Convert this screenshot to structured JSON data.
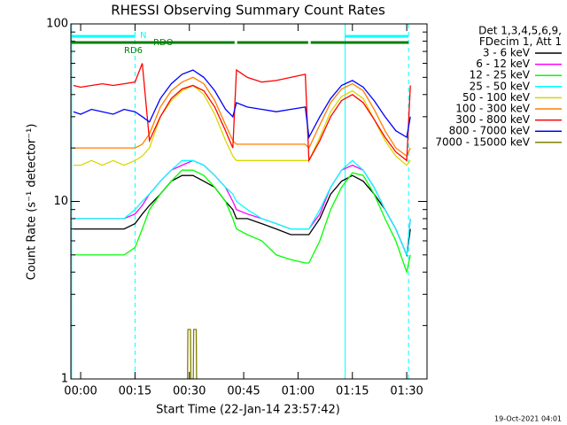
{
  "chart_data": {
    "type": "line",
    "title": "RHESSI Observing Summary Count Rates",
    "x_label": "Start Time (22-Jan-14 23:57:42)",
    "y_label": "Count Rate (s⁻¹ detector⁻¹)",
    "legend_header": [
      "Det 1,3,4,5,6,9,",
      "FDecim 1, Att 1"
    ],
    "footer": "19-Oct-2021 04:01",
    "log_y": true,
    "xlim": [
      -2.7,
      95.6
    ],
    "xticks": [
      {
        "value": 0,
        "label": "00:00"
      },
      {
        "value": 15,
        "label": "00:15"
      },
      {
        "value": 30,
        "label": "00:30"
      },
      {
        "value": 45,
        "label": "00:45"
      },
      {
        "value": 60,
        "label": "01:00"
      },
      {
        "value": 75,
        "label": "01:15"
      },
      {
        "value": 90,
        "label": "01:30"
      }
    ],
    "ylim": [
      1,
      100
    ],
    "yticks": [
      1,
      10,
      100
    ],
    "yminorticks": [
      2,
      3,
      4,
      5,
      6,
      7,
      8,
      9,
      20,
      30,
      40,
      50,
      60,
      70,
      80,
      90
    ],
    "x": [
      -2,
      0,
      3,
      6,
      9,
      12,
      15,
      17,
      19,
      22,
      25,
      28,
      31,
      34,
      37,
      40,
      42,
      43,
      46,
      50,
      54,
      58,
      62,
      63,
      66,
      69,
      72,
      75,
      78,
      81,
      84,
      87,
      90,
      91
    ],
    "series": [
      {
        "name": "3 - 6 keV",
        "color": "#000000",
        "values": [
          7,
          7,
          7,
          7,
          7,
          7,
          7.5,
          8.5,
          9.5,
          11,
          13,
          14,
          14,
          13,
          12,
          10,
          9,
          8,
          8,
          7.5,
          7,
          6.5,
          6.5,
          6.5,
          8,
          11,
          13,
          14,
          13,
          11,
          9,
          7,
          5,
          7
        ]
      },
      {
        "name": "6 - 12 keV",
        "color": "#ff00ff",
        "values": [
          8,
          8,
          8,
          8,
          8,
          8,
          8.5,
          9.5,
          11,
          13,
          15,
          16,
          17,
          16,
          14,
          12,
          10,
          9,
          8.5,
          8,
          7.5,
          7,
          7,
          7,
          8.5,
          12,
          15,
          16,
          15,
          12,
          9,
          7,
          5,
          8
        ]
      },
      {
        "name": "12 - 25 keV",
        "color": "#00ff00",
        "values": [
          5,
          5,
          5,
          5,
          5,
          5,
          5.5,
          7,
          9,
          11,
          13,
          15,
          15,
          14,
          12,
          10,
          8,
          7,
          6.5,
          6,
          5,
          4.7,
          4.5,
          4.5,
          6,
          9,
          12,
          14.5,
          14,
          11,
          8,
          6,
          4,
          5
        ]
      },
      {
        "name": "25 - 50 keV",
        "color": "#00ffff",
        "values": [
          8,
          8,
          8,
          8,
          8,
          8,
          9,
          10,
          11,
          13,
          15,
          17,
          17,
          16,
          14,
          12,
          11,
          10,
          9,
          8,
          7.5,
          7,
          7,
          7,
          9,
          12,
          15,
          17,
          15,
          12,
          9,
          7,
          5,
          8
        ]
      },
      {
        "name": "50 - 100 keV",
        "color": "#d8d800",
        "values": [
          16,
          16,
          17,
          16,
          17,
          16,
          17,
          18,
          20,
          30,
          37,
          42,
          45,
          40,
          31,
          22,
          18,
          17,
          17,
          17,
          17,
          17,
          17,
          17,
          23,
          32,
          39,
          42,
          38,
          29,
          22,
          18,
          16,
          17
        ]
      },
      {
        "name": "100 - 300 keV",
        "color": "#ff7f00",
        "values": [
          20,
          20,
          20,
          20,
          20,
          20,
          20,
          21,
          24,
          34,
          42,
          47,
          50,
          46,
          37,
          27,
          22,
          21,
          21,
          21,
          21,
          21,
          21,
          20,
          27,
          36,
          43,
          46,
          42,
          33,
          25,
          20,
          18,
          20
        ]
      },
      {
        "name": "300 - 800 keV",
        "color": "#ff0000",
        "values": [
          45,
          44,
          45,
          46,
          45,
          46,
          47,
          60,
          22,
          30,
          38,
          43,
          45,
          42,
          34,
          25,
          20,
          55,
          50,
          47,
          48,
          50,
          52,
          17,
          22,
          30,
          37,
          40,
          36,
          29,
          23,
          19,
          17,
          45
        ]
      },
      {
        "name": "800 - 7000 keV",
        "color": "#0000ff",
        "values": [
          32,
          31,
          33,
          32,
          31,
          33,
          32,
          30,
          28,
          38,
          46,
          52,
          55,
          50,
          42,
          33,
          30,
          36,
          34,
          33,
          32,
          33,
          34,
          23,
          30,
          38,
          45,
          48,
          44,
          37,
          30,
          25,
          23,
          30
        ]
      },
      {
        "name": "7000 - 15000 keV",
        "color": "#808000",
        "x": [
          29.5,
          29.6,
          30.3,
          30.4,
          31.1,
          31.2,
          31.9,
          32
        ],
        "values": [
          1,
          1.9,
          1.9,
          1,
          1,
          1.9,
          1.9,
          1
        ]
      }
    ],
    "flags": [
      {
        "label": "N",
        "color": "#00ffff",
        "intervals": [
          [
            -2.5,
            15
          ],
          [
            73,
            90.5
          ]
        ]
      },
      {
        "label": "RDO",
        "color": "#008000",
        "intervals": [
          [
            -2.5,
            42.5
          ],
          [
            43.2,
            62.8
          ],
          [
            63.5,
            90.5
          ]
        ]
      }
    ],
    "annotation": "RD6",
    "markers": [
      {
        "x": -2.5,
        "style": "solid"
      },
      {
        "x": 15,
        "style": "dashed"
      },
      {
        "x": 73,
        "style": "solid"
      },
      {
        "x": 90.5,
        "style": "dashed"
      }
    ]
  }
}
